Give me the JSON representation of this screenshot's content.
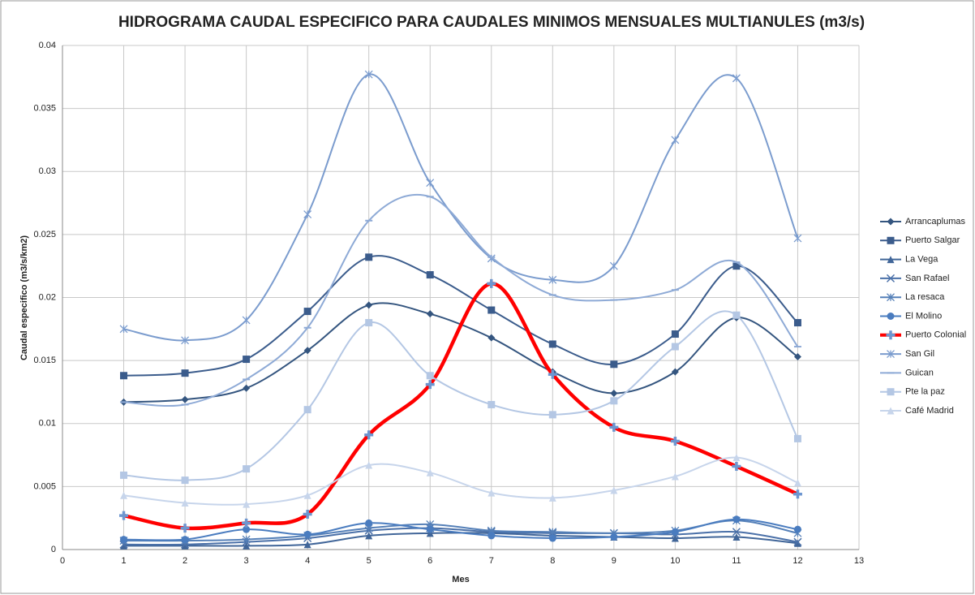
{
  "chart_data": {
    "type": "line",
    "title": "HIDROGRAMA  CAUDAL ESPECIFICO PARA CAUDALES MINIMOS MENSUALES  MULTIANULES (m3/s)",
    "x_label": "Mes",
    "y_label": "Caudal especifico (m3/s/km2)",
    "x": [
      1,
      2,
      3,
      4,
      5,
      6,
      7,
      8,
      9,
      10,
      11,
      12
    ],
    "xlim": [
      0,
      13
    ],
    "xticks": [
      0,
      1,
      2,
      3,
      4,
      5,
      6,
      7,
      8,
      9,
      10,
      11,
      12,
      13
    ],
    "ylim": [
      0,
      0.04
    ],
    "yticks": [
      0,
      0.005,
      0.01,
      0.015,
      0.02,
      0.025,
      0.03,
      0.035,
      0.04
    ],
    "grid": true,
    "smooth": true,
    "legend": "right",
    "series": [
      {
        "name": "Arrancaplumas",
        "color": "#34557f",
        "marker": "diamond",
        "values": [
          0.0117,
          0.0119,
          0.0128,
          0.0158,
          0.0194,
          0.0187,
          0.0168,
          0.0141,
          0.0124,
          0.0141,
          0.0184,
          0.0153
        ]
      },
      {
        "name": "Puerto Salgar",
        "color": "#3b5c8c",
        "marker": "square",
        "values": [
          0.0138,
          0.014,
          0.0151,
          0.0189,
          0.0232,
          0.0218,
          0.019,
          0.0163,
          0.0147,
          0.0171,
          0.0225,
          0.018
        ]
      },
      {
        "name": "La  Vega",
        "color": "#416699",
        "marker": "triangle",
        "values": [
          0.0003,
          0.0003,
          0.0003,
          0.0004,
          0.0011,
          0.0013,
          0.0013,
          0.0011,
          0.001,
          0.0009,
          0.001,
          0.0005
        ]
      },
      {
        "name": "San  Rafael",
        "color": "#4a70a8",
        "marker": "x",
        "values": [
          0.0004,
          0.0004,
          0.0006,
          0.0009,
          0.0015,
          0.0017,
          0.0014,
          0.0013,
          0.0013,
          0.0012,
          0.0014,
          0.0006
        ]
      },
      {
        "name": "La resaca",
        "color": "#5580b8",
        "marker": "star",
        "values": [
          0.0007,
          0.0007,
          0.0008,
          0.0011,
          0.0017,
          0.002,
          0.0015,
          0.0014,
          0.0013,
          0.0015,
          0.0023,
          0.0013
        ]
      },
      {
        "name": "El Molino",
        "color": "#4a7cbf",
        "marker": "circle",
        "values": [
          0.0008,
          0.0008,
          0.0016,
          0.0012,
          0.0021,
          0.0016,
          0.0011,
          0.0009,
          0.001,
          0.0014,
          0.0024,
          0.0016
        ]
      },
      {
        "name": "Puerto Colonial",
        "color": "#ff0000",
        "marker": "plus",
        "values": [
          0.0027,
          0.0017,
          0.0021,
          0.0028,
          0.0091,
          0.0131,
          0.0211,
          0.0139,
          0.0097,
          0.0086,
          0.0066,
          0.0044
        ]
      },
      {
        "name": "San Gil",
        "color": "#7b9cce",
        "marker": "star",
        "values": [
          0.0175,
          0.0166,
          0.0182,
          0.0266,
          0.0377,
          0.0291,
          0.0231,
          0.0214,
          0.0225,
          0.0325,
          0.0374,
          0.0247
        ]
      },
      {
        "name": "Guican",
        "color": "#8eaad6",
        "marker": "dash",
        "values": [
          0.0117,
          0.0115,
          0.0135,
          0.0176,
          0.0261,
          0.028,
          0.0232,
          0.0202,
          0.0198,
          0.0206,
          0.0228,
          0.0161
        ]
      },
      {
        "name": "Pte la paz",
        "color": "#b4c7e4",
        "marker": "square",
        "values": [
          0.0059,
          0.0055,
          0.0064,
          0.0111,
          0.018,
          0.0138,
          0.0115,
          0.0107,
          0.0118,
          0.0161,
          0.0186,
          0.0088
        ]
      },
      {
        "name": "Café Madrid",
        "color": "#c7d5eb",
        "marker": "triangle",
        "values": [
          0.0043,
          0.0037,
          0.0036,
          0.0043,
          0.0067,
          0.0061,
          0.0045,
          0.0041,
          0.0047,
          0.0058,
          0.0073,
          0.0053
        ]
      }
    ]
  }
}
